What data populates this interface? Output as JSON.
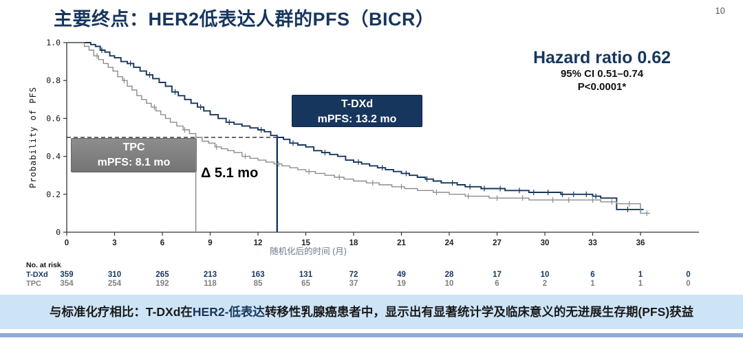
{
  "page": {
    "title": "主要终点：HER2低表达人群的PFS（BICR）",
    "page_number": "10"
  },
  "stats": {
    "hazard_ratio": "Hazard ratio 0.62",
    "confidence_interval": "95% CI 0.51–0.74",
    "p_value": "P<0.0001*"
  },
  "annotations": {
    "tdxd_box": {
      "line1": "T-DXd",
      "line2": "mPFS: 13.2 mo"
    },
    "tpc_box": {
      "line1": "TPC",
      "line2": "mPFS: 8.1 mo"
    },
    "delta": "Δ 5.1 mo"
  },
  "banner": {
    "prefix": "与标准化疗相比：T-DXd在",
    "highlight": "HER2-低表达",
    "suffix": "转移性乳腺癌患者中，显示出有显著统计学及临床意义的无进展生存期(PFS)获益"
  },
  "colors": {
    "navy": "#17365D",
    "gray_arm": "#8C8C8C",
    "banner_bg": "#CDE4F6",
    "bottom_strip": "#8FAADC"
  },
  "chart_data": {
    "type": "line",
    "subtype": "kaplan-meier-step",
    "xlabel": "随机化后的时间 (月)",
    "ylabel": "Probability of PFS",
    "xlim": [
      0,
      39.6
    ],
    "ylim": [
      0,
      1.0
    ],
    "xticks": [
      0,
      3,
      6,
      9,
      12,
      15,
      18,
      21,
      24,
      27,
      30,
      33,
      36
    ],
    "yticks": [
      0,
      0.2,
      0.4,
      0.6,
      0.8,
      1.0
    ],
    "grid": false,
    "medians": {
      "probability": 0.5,
      "tdxd_months": 13.2,
      "tpc_months": 8.1,
      "delta_months": 5.1
    },
    "series": [
      {
        "name": "T-DXd",
        "color": "#17365D",
        "median_pfs_months": 13.2,
        "steps": [
          [
            0,
            1
          ],
          [
            1.3,
            1
          ],
          [
            1.5,
            0.99
          ],
          [
            1.8,
            0.98
          ],
          [
            2.1,
            0.96
          ],
          [
            2.4,
            0.95
          ],
          [
            2.7,
            0.93
          ],
          [
            3,
            0.92
          ],
          [
            3.4,
            0.9
          ],
          [
            3.8,
            0.89
          ],
          [
            4.2,
            0.87
          ],
          [
            4.6,
            0.85
          ],
          [
            5,
            0.83
          ],
          [
            5.4,
            0.81
          ],
          [
            5.8,
            0.79
          ],
          [
            6.2,
            0.77
          ],
          [
            6.6,
            0.74
          ],
          [
            7,
            0.72
          ],
          [
            7.4,
            0.7
          ],
          [
            7.8,
            0.68
          ],
          [
            8.2,
            0.66
          ],
          [
            8.6,
            0.64
          ],
          [
            9,
            0.62
          ],
          [
            9.5,
            0.6
          ],
          [
            10,
            0.58
          ],
          [
            10.5,
            0.57
          ],
          [
            11,
            0.56
          ],
          [
            11.5,
            0.55
          ],
          [
            12,
            0.54
          ],
          [
            12.4,
            0.53
          ],
          [
            12.8,
            0.51
          ],
          [
            13.2,
            0.5
          ],
          [
            13.6,
            0.49
          ],
          [
            14,
            0.47
          ],
          [
            14.5,
            0.46
          ],
          [
            15,
            0.45
          ],
          [
            15.5,
            0.43
          ],
          [
            16,
            0.42
          ],
          [
            16.5,
            0.41
          ],
          [
            17,
            0.4
          ],
          [
            17.5,
            0.38
          ],
          [
            18,
            0.37
          ],
          [
            18.5,
            0.36
          ],
          [
            19,
            0.35
          ],
          [
            19.5,
            0.34
          ],
          [
            20,
            0.33
          ],
          [
            20.5,
            0.32
          ],
          [
            21,
            0.31
          ],
          [
            21.5,
            0.3
          ],
          [
            22,
            0.29
          ],
          [
            22.5,
            0.28
          ],
          [
            23,
            0.27
          ],
          [
            23.5,
            0.26
          ],
          [
            24.5,
            0.25
          ],
          [
            25,
            0.24
          ],
          [
            26,
            0.23
          ],
          [
            27.5,
            0.22
          ],
          [
            29,
            0.21
          ],
          [
            31,
            0.2
          ],
          [
            33,
            0.19
          ],
          [
            33.5,
            0.18
          ],
          [
            34.5,
            0.12
          ],
          [
            36.2,
            0.12
          ]
        ],
        "censor_marks": [
          2.2,
          4.0,
          5.2,
          6.8,
          8.4,
          10.2,
          12.2,
          14.2,
          16.2,
          18.3,
          19.8,
          21.3,
          22.6,
          24.2,
          25.3,
          26.2,
          27.2,
          28.4,
          29.3,
          30.2,
          31.1,
          31.8,
          32.6,
          33.2,
          35.2,
          36.0
        ]
      },
      {
        "name": "TPC",
        "color": "#8C8C8C",
        "median_pfs_months": 8.1,
        "steps": [
          [
            0,
            1
          ],
          [
            0.9,
            1
          ],
          [
            1.1,
            0.98
          ],
          [
            1.4,
            0.96
          ],
          [
            1.7,
            0.93
          ],
          [
            2,
            0.91
          ],
          [
            2.3,
            0.89
          ],
          [
            2.6,
            0.87
          ],
          [
            2.9,
            0.85
          ],
          [
            3.2,
            0.82
          ],
          [
            3.5,
            0.8
          ],
          [
            3.8,
            0.77
          ],
          [
            4.1,
            0.75
          ],
          [
            4.4,
            0.72
          ],
          [
            4.7,
            0.7
          ],
          [
            5,
            0.68
          ],
          [
            5.3,
            0.66
          ],
          [
            5.6,
            0.64
          ],
          [
            5.9,
            0.62
          ],
          [
            6.2,
            0.6
          ],
          [
            6.5,
            0.58
          ],
          [
            6.9,
            0.56
          ],
          [
            7.3,
            0.54
          ],
          [
            7.7,
            0.52
          ],
          [
            8.1,
            0.5
          ],
          [
            8.5,
            0.48
          ],
          [
            8.9,
            0.47
          ],
          [
            9.3,
            0.45
          ],
          [
            9.7,
            0.44
          ],
          [
            10.1,
            0.43
          ],
          [
            10.5,
            0.42
          ],
          [
            11,
            0.4
          ],
          [
            11.5,
            0.39
          ],
          [
            12,
            0.38
          ],
          [
            12.5,
            0.37
          ],
          [
            13,
            0.36
          ],
          [
            13.5,
            0.35
          ],
          [
            14,
            0.34
          ],
          [
            14.5,
            0.33
          ],
          [
            15,
            0.32
          ],
          [
            15.6,
            0.31
          ],
          [
            16.2,
            0.3
          ],
          [
            16.8,
            0.29
          ],
          [
            17.4,
            0.28
          ],
          [
            18,
            0.27
          ],
          [
            18.8,
            0.26
          ],
          [
            19.6,
            0.25
          ],
          [
            20.4,
            0.24
          ],
          [
            21.2,
            0.23
          ],
          [
            22,
            0.22
          ],
          [
            23,
            0.21
          ],
          [
            24,
            0.2
          ],
          [
            25,
            0.19
          ],
          [
            26.5,
            0.18
          ],
          [
            29,
            0.17
          ],
          [
            32,
            0.17
          ],
          [
            33.5,
            0.16
          ],
          [
            34.5,
            0.15
          ],
          [
            35.8,
            0.15
          ],
          [
            36,
            0.1
          ],
          [
            36.6,
            0.1
          ]
        ],
        "censor_marks": [
          1.9,
          3.6,
          5.5,
          7.4,
          9.4,
          11.2,
          13.3,
          15.2,
          17.1,
          19.2,
          21.0,
          23.2,
          25.2,
          27.0,
          28.6,
          30.5,
          31.5,
          33.0,
          34.2,
          35.3,
          36.4
        ]
      }
    ],
    "risk_table": {
      "label": "No. at risk",
      "time_points": [
        0,
        3,
        6,
        9,
        12,
        15,
        18,
        21,
        24,
        27,
        30,
        33,
        36,
        39
      ],
      "rows": [
        {
          "name": "T-DXd",
          "color": "#17365D",
          "counts": [
            359,
            310,
            265,
            213,
            163,
            131,
            72,
            49,
            28,
            17,
            10,
            6,
            1,
            0
          ]
        },
        {
          "name": "TPC",
          "color": "#7F7F7F",
          "counts": [
            354,
            254,
            192,
            118,
            85,
            65,
            37,
            19,
            10,
            6,
            2,
            1,
            1,
            0
          ]
        }
      ]
    }
  }
}
